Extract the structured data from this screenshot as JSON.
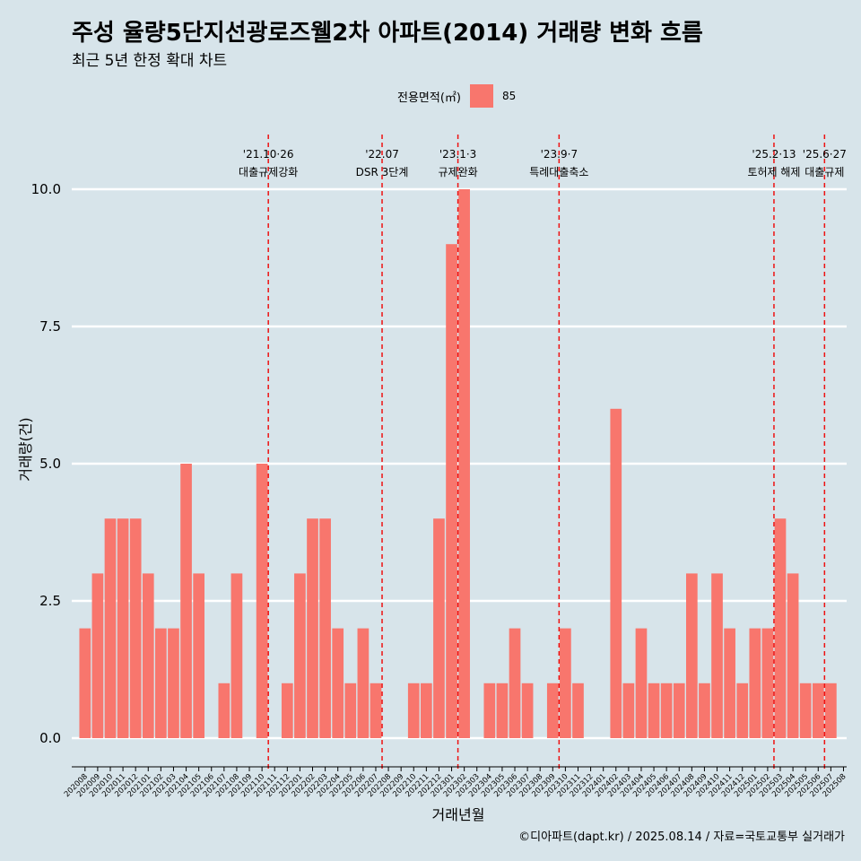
{
  "header": {
    "title": "주성 율량5단지선광로즈웰2차 아파트(2014) 거래량 변화 흐름",
    "subtitle": "최근 5년 한정 확대 차트"
  },
  "legend": {
    "title": "전용면적(㎡)",
    "item": "85"
  },
  "caption": "©디아파트(dapt.kr) / 2025.08.14 / 자료=국토교통부 실거래가",
  "chart_data": {
    "type": "bar",
    "xlabel": "거래년월",
    "ylabel": "거래량(건)",
    "ylim": [
      0,
      10
    ],
    "y_ticks": [
      "0.0",
      "2.5",
      "5.0",
      "7.5",
      "10.0"
    ],
    "grid": true,
    "legend_position": "top",
    "bar_color": "#f8766d",
    "categories": [
      "202008",
      "202009",
      "202010",
      "202011",
      "202012",
      "202101",
      "202102",
      "202103",
      "202104",
      "202105",
      "202106",
      "202107",
      "202108",
      "202109",
      "202110",
      "202111",
      "202112",
      "202201",
      "202202",
      "202203",
      "202204",
      "202205",
      "202206",
      "202207",
      "202208",
      "202209",
      "202210",
      "202211",
      "202212",
      "202301",
      "202302",
      "202303",
      "202304",
      "202305",
      "202306",
      "202307",
      "202308",
      "202309",
      "202310",
      "202311",
      "202312",
      "202401",
      "202402",
      "202403",
      "202404",
      "202405",
      "202406",
      "202407",
      "202408",
      "202409",
      "202410",
      "202411",
      "202412",
      "202501",
      "202502",
      "202503",
      "202504",
      "202505",
      "202506",
      "202507",
      "202508"
    ],
    "series": [
      {
        "name": "85",
        "values": [
          2,
          3,
          4,
          4,
          4,
          3,
          2,
          2,
          5,
          3,
          0,
          1,
          3,
          0,
          5,
          0,
          1,
          3,
          4,
          4,
          2,
          1,
          2,
          1,
          0,
          0,
          1,
          1,
          4,
          9,
          10,
          0,
          1,
          1,
          2,
          1,
          0,
          1,
          2,
          1,
          0,
          0,
          6,
          1,
          2,
          1,
          1,
          1,
          3,
          1,
          3,
          2,
          1,
          2,
          2,
          4,
          3,
          1,
          1,
          1,
          0
        ]
      }
    ],
    "annotations": [
      {
        "date": "202110",
        "line1": "'21.10·26",
        "line2": "대출규제강화"
      },
      {
        "date": "202207",
        "line1": "'22.07",
        "line2": "DSR 3단계"
      },
      {
        "date": "202301",
        "line1": "'23.1·3",
        "line2": "규제완화"
      },
      {
        "date": "202309",
        "line1": "'23.9·7",
        "line2": "특례대출축소"
      },
      {
        "date": "202502",
        "line1": "'25.2·13",
        "line2": "토허제 해제"
      },
      {
        "date": "202506",
        "line1": "'25.6·27",
        "line2": "대출규제"
      }
    ]
  }
}
